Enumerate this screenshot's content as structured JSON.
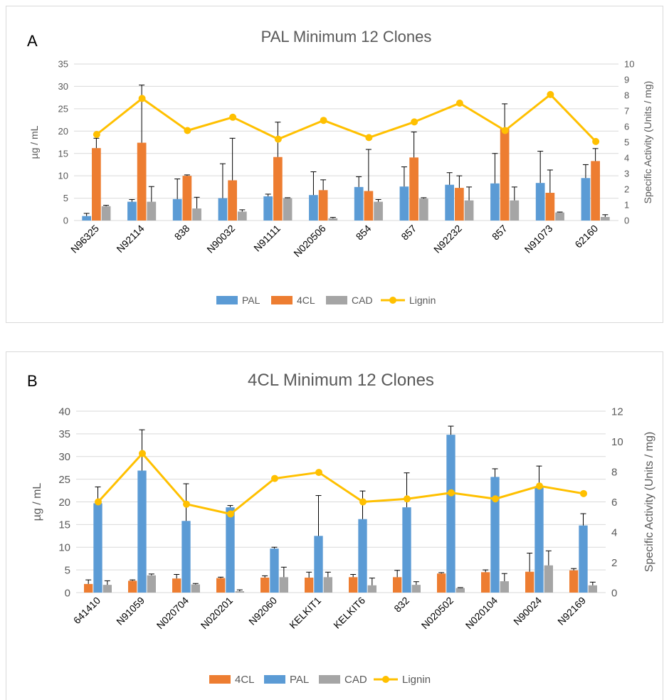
{
  "colors": {
    "PAL": "#5b9bd5",
    "4CL": "#ed7d31",
    "CAD": "#a5a5a5",
    "Lignin": "#ffc000",
    "grid": "#d9d9d9",
    "text": "#595959",
    "err": "#000000"
  },
  "chart_data": [
    {
      "panel_label": "A",
      "type": "bar",
      "title": "PAL Minimum 12 Clones",
      "ylabel": "µg / mL",
      "y2label": "Specific Activity (Units / mg)",
      "ylim": [
        0,
        35
      ],
      "y_ticks": [
        "0",
        "5",
        "10",
        "15",
        "20",
        "25",
        "30",
        "35"
      ],
      "y2lim": [
        0,
        10
      ],
      "y2_ticks": [
        "0",
        "1",
        "2",
        "3",
        "4",
        "5",
        "6",
        "7",
        "8",
        "9",
        "10"
      ],
      "categories": [
        "N96325",
        "N92114",
        "838",
        "N90032",
        "N91111",
        "N020506",
        "854",
        "857",
        "N92232",
        "857",
        "N91073",
        "62160"
      ],
      "legend": [
        "PAL",
        "4CL",
        "CAD",
        "Lignin"
      ],
      "series": [
        {
          "name": "PAL",
          "axis": "left",
          "values": [
            1.0,
            4.2,
            4.8,
            5.0,
            5.4,
            5.7,
            7.5,
            7.6,
            8.0,
            8.3,
            8.4,
            9.5
          ],
          "errors": [
            0.6,
            0.5,
            4.5,
            7.7,
            0.5,
            5.2,
            2.3,
            4.4,
            2.7,
            6.7,
            7.1,
            3.0
          ]
        },
        {
          "name": "4CL",
          "axis": "left",
          "values": [
            16.2,
            17.4,
            10.0,
            9.0,
            14.2,
            6.8,
            6.6,
            14.1,
            7.3,
            20.6,
            6.2,
            13.3
          ],
          "errors": [
            2.2,
            12.9,
            0.2,
            9.4,
            7.8,
            2.3,
            9.3,
            5.7,
            2.7,
            5.5,
            5.1,
            2.8
          ]
        },
        {
          "name": "CAD",
          "axis": "left",
          "values": [
            3.2,
            4.2,
            2.7,
            2.0,
            5.0,
            0.5,
            4.2,
            4.9,
            4.5,
            4.5,
            1.8,
            0.8
          ],
          "errors": [
            0.2,
            3.4,
            2.5,
            0.4,
            0.1,
            0.2,
            0.5,
            0.2,
            3.0,
            3.0,
            0.1,
            0.5
          ]
        },
        {
          "name": "Lignin",
          "axis": "right",
          "type": "line",
          "values": [
            5.5,
            7.8,
            5.75,
            6.6,
            5.2,
            6.4,
            5.3,
            6.3,
            7.5,
            5.75,
            8.05,
            5.05
          ]
        }
      ]
    },
    {
      "panel_label": "B",
      "type": "bar",
      "title": "4CL Minimum 12 Clones",
      "ylabel": "µg / mL",
      "y2label": "Specific Activity (Units / mg)",
      "ylim": [
        0,
        40
      ],
      "y_ticks": [
        "0",
        "5",
        "10",
        "15",
        "20",
        "25",
        "30",
        "35",
        "40"
      ],
      "y2lim": [
        0,
        12
      ],
      "y2_ticks": [
        "0",
        "2",
        "4",
        "6",
        "8",
        "10",
        "12"
      ],
      "categories": [
        "641410",
        "N91059",
        "N020704",
        "N020201",
        "N92060",
        "KELKIT1",
        "KELKIT6",
        "832",
        "N020502",
        "N020104",
        "N90024",
        "N92169"
      ],
      "legend": [
        "4CL",
        "PAL",
        "CAD",
        "Lignin"
      ],
      "series": [
        {
          "name": "4CL",
          "axis": "left",
          "values": [
            1.9,
            2.6,
            3.1,
            3.2,
            3.3,
            3.3,
            3.4,
            3.4,
            4.2,
            4.5,
            4.6,
            4.9
          ],
          "errors": [
            0.9,
            0.2,
            0.9,
            0.2,
            0.4,
            1.2,
            0.6,
            1.5,
            0.2,
            0.5,
            4.1,
            0.4
          ]
        },
        {
          "name": "PAL",
          "axis": "left",
          "values": [
            19.7,
            26.9,
            15.8,
            18.8,
            9.7,
            12.5,
            16.2,
            18.8,
            34.8,
            25.5,
            23.3,
            14.8
          ],
          "errors": [
            3.6,
            9.0,
            8.2,
            0.4,
            0.3,
            8.9,
            6.2,
            7.6,
            1.9,
            1.8,
            4.6,
            2.6
          ]
        },
        {
          "name": "CAD",
          "axis": "left",
          "values": [
            1.7,
            3.8,
            1.8,
            0.3,
            3.4,
            3.4,
            1.6,
            1.7,
            1.0,
            2.5,
            6.0,
            1.6
          ],
          "errors": [
            0.9,
            0.3,
            0.2,
            0.3,
            2.2,
            1.1,
            1.6,
            0.7,
            0.1,
            1.7,
            3.2,
            0.7
          ]
        },
        {
          "name": "Lignin",
          "axis": "right",
          "type": "line",
          "values": [
            6.0,
            9.2,
            5.85,
            5.2,
            7.55,
            7.95,
            6.0,
            6.2,
            6.6,
            6.2,
            7.05,
            6.55
          ]
        }
      ]
    }
  ]
}
